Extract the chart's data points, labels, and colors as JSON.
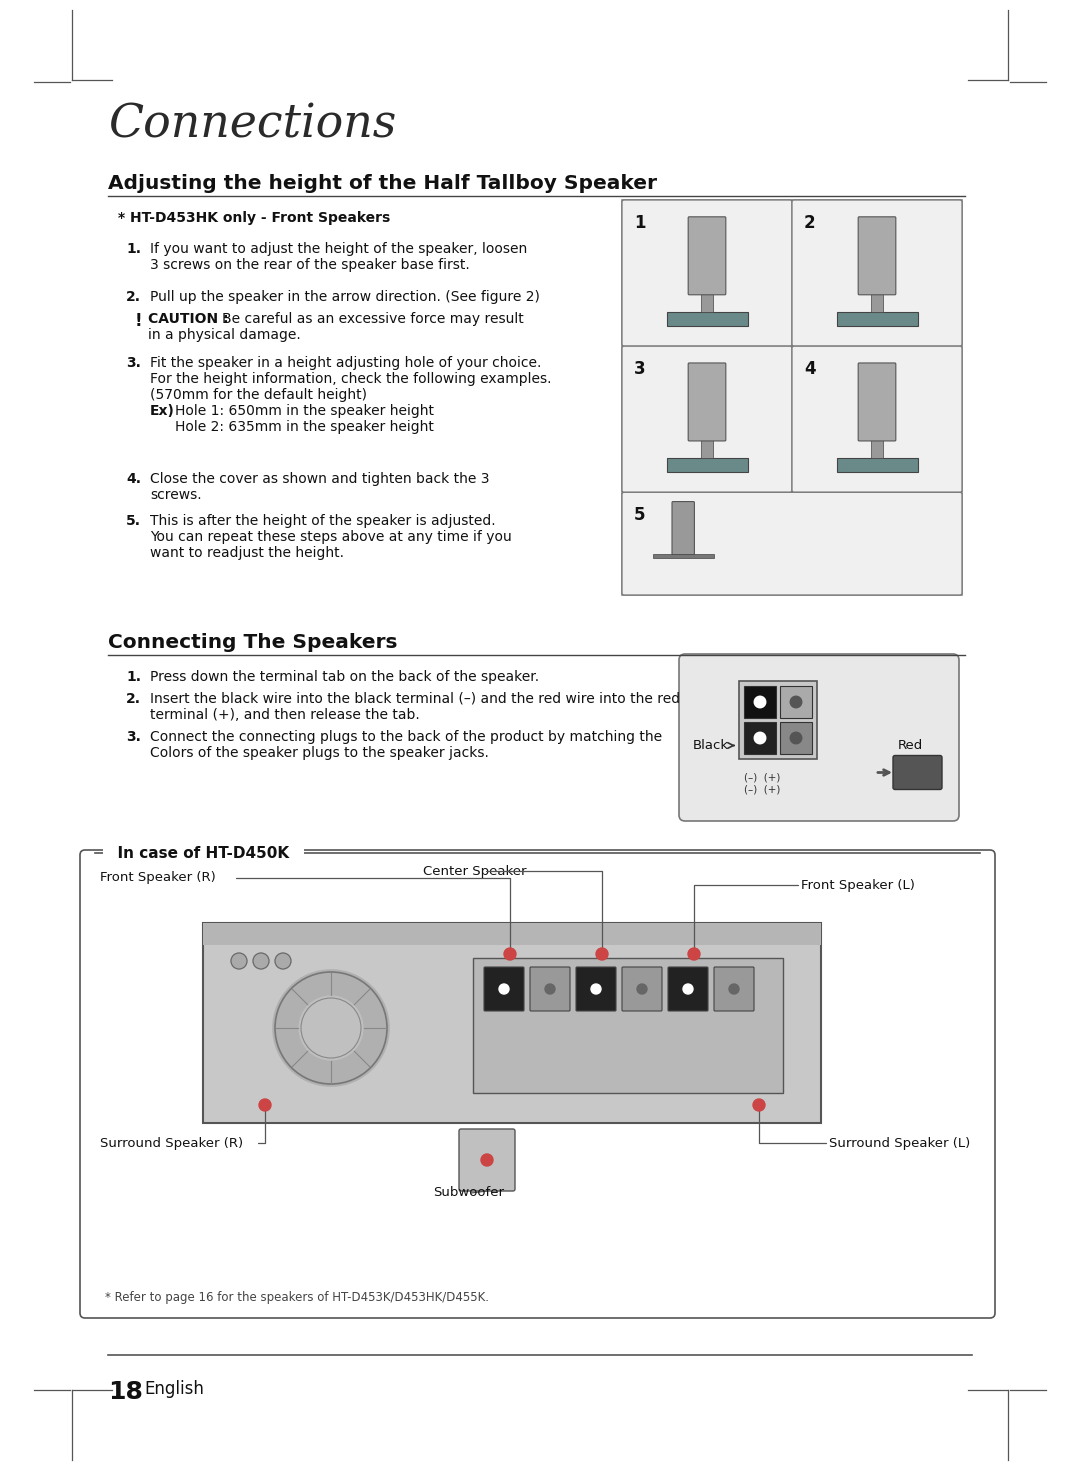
{
  "bg": "#ffffff",
  "tc": "#111111",
  "page_num": "18",
  "page_label": "English",
  "section_title": "Connections",
  "h1": "Adjusting the height of the Half Tallboy Speaker",
  "subh1": "* HT-D453HK only - Front Speakers",
  "h2": "Connecting The Speakers",
  "incase": "In case of HT-D450K",
  "footnote": "* Refer to page 16 for the speakers of HT-D453K/D453HK/D455K.",
  "step1": "If you want to adjust the height of the speaker, loosen\n3 screws on the rear of the speaker base first.",
  "step2": "Pull up the speaker in the arrow direction. (See figure 2)",
  "caution": "Be careful as an excessive force may result\nin a physical damage.",
  "step3a": "Fit the speaker in a height adjusting hole of your choice.",
  "step3b": "For the height information, check the following examples.",
  "step3c": "(570mm for the default height)",
  "step3d": "Hole 1: 650mm in the speaker height",
  "step3e": "Hole 2: 635mm in the speaker height",
  "step4": "Close the cover as shown and tighten back the 3\nscrews.",
  "step5": "This is after the height of the speaker is adjusted.\nYou can repeat these steps above at any time if you\nwant to readjust the height.",
  "cs1": "Press down the terminal tab on the back of the speaker.",
  "cs2": "Insert the black wire into the black terminal (–) and the red wire into the red\nterminal (+), and then release the tab.",
  "cs3": "Connect the connecting plugs to the back of the product by matching the\nColors of the speaker plugs to the speaker jacks."
}
